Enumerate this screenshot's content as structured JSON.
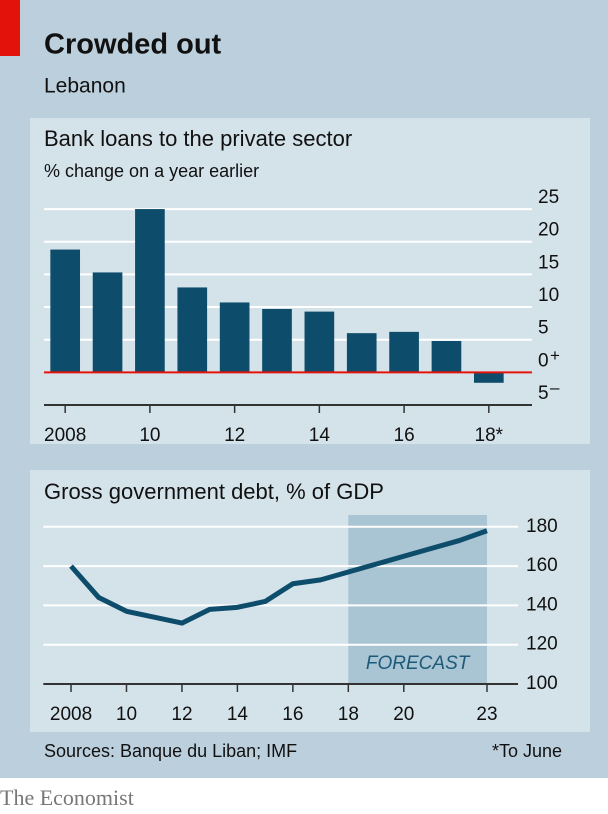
{
  "header": {
    "title": "Crowded out",
    "subtitle": "Lebanon"
  },
  "chart_data": [
    {
      "type": "bar",
      "title": "Bank loans to the private sector",
      "subtitle": "% change on a year earlier",
      "categories": [
        "2008",
        null,
        "10",
        null,
        "12",
        null,
        "14",
        null,
        "16",
        null,
        "18*"
      ],
      "values": [
        18.8,
        15.3,
        25,
        13,
        10.7,
        9.7,
        9.3,
        6,
        6.2,
        4.8,
        -1.6
      ],
      "color": "#0d4d6b",
      "zero_line_color": "#e3120b",
      "ylim": [
        -5,
        27
      ],
      "yticks": [
        {
          "value": -5,
          "label": "5"
        },
        0,
        5,
        10,
        15,
        20,
        25
      ],
      "zero_signs": [
        "+",
        "–"
      ],
      "grid": true
    },
    {
      "type": "line",
      "title": "Gross government debt, % of GDP",
      "x": [
        2008,
        2009,
        2010,
        2011,
        2012,
        2013,
        2014,
        2015,
        2016,
        2017,
        2018,
        2019,
        2020,
        2021,
        2022,
        2023
      ],
      "values": [
        160,
        144,
        137,
        134,
        131,
        138,
        139,
        142,
        151,
        153,
        157,
        161,
        165,
        169,
        173,
        178
      ],
      "color": "#0d4d6b",
      "xlim": [
        2007,
        2024
      ],
      "xticks": [
        2008,
        {
          "value": 2010,
          "label": "10"
        },
        {
          "value": 2012,
          "label": "12"
        },
        {
          "value": 2014,
          "label": "14"
        },
        {
          "value": 2016,
          "label": "16"
        },
        {
          "value": 2018,
          "label": "18"
        },
        {
          "value": 2020,
          "label": "20"
        },
        {
          "value": 2023,
          "label": "23"
        }
      ],
      "ylim": [
        100,
        186
      ],
      "yticks": [
        100,
        120,
        140,
        160,
        180
      ],
      "grid": true,
      "forecast": {
        "start": 2018,
        "end": 2023,
        "label": "FORECAST",
        "color": "#a9c4d3"
      }
    }
  ],
  "footer": {
    "source": "Sources: Banque du Liban; IMF",
    "note": "*To June",
    "brand": "The Economist"
  }
}
